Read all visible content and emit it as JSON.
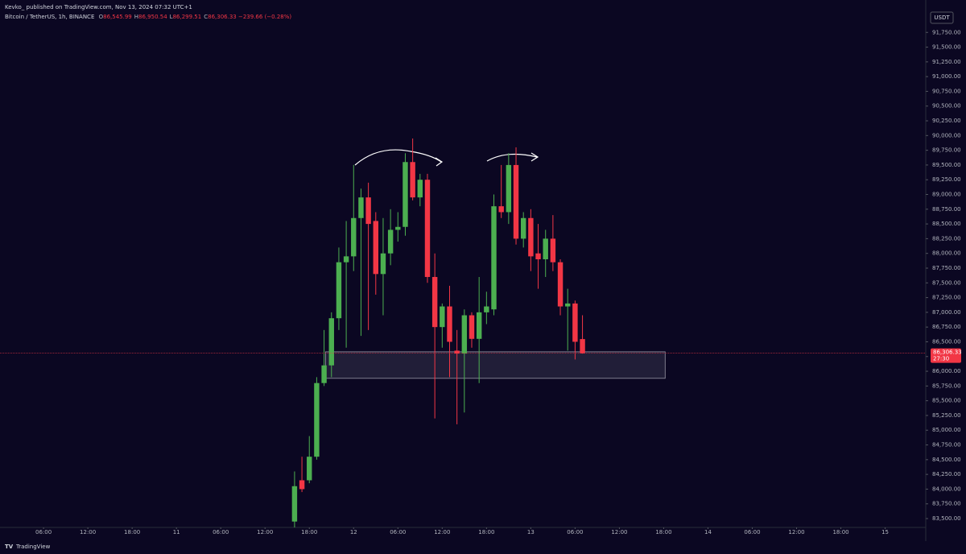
{
  "chart_data": {
    "type": "candlestick",
    "publisher": "Kevko_ published on TradingView.com, Nov 13, 2024 07:32 UTC+1",
    "symbol": "Bitcoin / TetherUS, 1h, BINANCE",
    "ohlc": [
      {
        "key": "O",
        "value": "86,545.99"
      },
      {
        "key": "H",
        "value": "86,950.54"
      },
      {
        "key": "L",
        "value": "86,299.51"
      },
      {
        "key": "C",
        "value": "86,306.33"
      }
    ],
    "change": "−239.66 (−0.28%)",
    "currency": "USDT",
    "last_price_label": "86,306.33",
    "countdown": "27:30",
    "footer": "TradingView",
    "up_color": "#4caf50",
    "down_color": "#f23645",
    "x": [
      16,
      17,
      18,
      19,
      20,
      21,
      22,
      23,
      24,
      25,
      26,
      27,
      28,
      29,
      30,
      31,
      32,
      33,
      34,
      35,
      36,
      37,
      38,
      39,
      40,
      41,
      42,
      43,
      44,
      45,
      46,
      47,
      48,
      49,
      50,
      51,
      52,
      53,
      54,
      55
    ],
    "open": [
      83450,
      84150,
      84150,
      84550,
      85800,
      86100,
      86900,
      87850,
      87950,
      88600,
      88950,
      88550,
      87650,
      88000,
      88400,
      88450,
      89550,
      88950,
      89250,
      87600,
      86750,
      87100,
      86350,
      86300,
      86950,
      86550,
      87000,
      87050,
      88800,
      88700,
      89500,
      88250,
      88600,
      88000,
      87900,
      88250,
      87850,
      87100,
      87150,
      86545.99
    ],
    "high": [
      84300,
      84550,
      84900,
      85900,
      86700,
      87000,
      88100,
      88550,
      89500,
      89100,
      89200,
      88700,
      88600,
      88750,
      88700,
      89700,
      89950,
      89350,
      89350,
      88000,
      87150,
      87450,
      86700,
      87050,
      87000,
      87600,
      87350,
      89000,
      89500,
      89700,
      89800,
      88700,
      88750,
      88500,
      88400,
      88650,
      87900,
      87400,
      87200,
      86950.54
    ],
    "low": [
      83350,
      83950,
      84100,
      84500,
      85750,
      85900,
      86700,
      86400,
      87700,
      86600,
      86700,
      87300,
      86950,
      87800,
      88200,
      88300,
      88900,
      88800,
      87500,
      85200,
      86400,
      85900,
      85100,
      85300,
      86400,
      85800,
      86800,
      86950,
      88600,
      88500,
      88150,
      88100,
      87700,
      87400,
      87600,
      87700,
      86950,
      86350,
      86200,
      86299.51
    ],
    "close": [
      84050,
      84000,
      84550,
      85800,
      86100,
      86900,
      87850,
      87950,
      88600,
      88950,
      88500,
      87650,
      88000,
      88400,
      88450,
      89550,
      88950,
      89250,
      87600,
      86750,
      87100,
      86500,
      86300,
      86950,
      86550,
      87000,
      87100,
      88800,
      88700,
      89500,
      88250,
      88600,
      87950,
      87900,
      88250,
      87850,
      87100,
      87150,
      86500,
      86306.33
    ],
    "zone": {
      "x": [
        20.2,
        66.2
      ],
      "y": [
        86330,
        85880
      ]
    },
    "xlim": [
      -23.9,
      101.5
    ],
    "ylim": [
      83350,
      92300
    ],
    "xticks": [
      {
        "value": -18,
        "label": "06:00"
      },
      {
        "value": -12,
        "label": "12:00"
      },
      {
        "value": -6,
        "label": "18:00"
      },
      {
        "value": 0,
        "label": "11"
      },
      {
        "value": 6,
        "label": "06:00"
      },
      {
        "value": 12,
        "label": "12:00"
      },
      {
        "value": 18,
        "label": "18:00"
      },
      {
        "value": 24,
        "label": "12"
      },
      {
        "value": 30,
        "label": "06:00"
      },
      {
        "value": 36,
        "label": "12:00"
      },
      {
        "value": 42,
        "label": "18:00"
      },
      {
        "value": 48,
        "label": "13"
      },
      {
        "value": 54,
        "label": "06:00"
      },
      {
        "value": 60,
        "label": "12:00"
      },
      {
        "value": 66,
        "label": "18:00"
      },
      {
        "value": 72,
        "label": "14"
      },
      {
        "value": 78,
        "label": "06:00"
      },
      {
        "value": 84,
        "label": "12:00"
      },
      {
        "value": 90,
        "label": "18:00"
      },
      {
        "value": 96,
        "label": "15"
      }
    ],
    "yticks": [
      {
        "value": 83500,
        "label": "83,500.00"
      },
      {
        "value": 83750,
        "label": "83,750.00"
      },
      {
        "value": 84000,
        "label": "84,000.00"
      },
      {
        "value": 84250,
        "label": "84,250.00"
      },
      {
        "value": 84500,
        "label": "84,500.00"
      },
      {
        "value": 84750,
        "label": "84,750.00"
      },
      {
        "value": 85000,
        "label": "85,000.00"
      },
      {
        "value": 85250,
        "label": "85,250.00"
      },
      {
        "value": 85500,
        "label": "85,500.00"
      },
      {
        "value": 85750,
        "label": "85,750.00"
      },
      {
        "value": 86000,
        "label": "86,000.00"
      },
      {
        "value": 86250,
        "label": "86,250.00"
      },
      {
        "value": 86500,
        "label": "86,500.00"
      },
      {
        "value": 86750,
        "label": "86,750.00"
      },
      {
        "value": 87000,
        "label": "87,000.00"
      },
      {
        "value": 87250,
        "label": "87,250.00"
      },
      {
        "value": 87500,
        "label": "87,500.00"
      },
      {
        "value": 87750,
        "label": "87,750.00"
      },
      {
        "value": 88000,
        "label": "88,000.00"
      },
      {
        "value": 88250,
        "label": "88,250.00"
      },
      {
        "value": 88500,
        "label": "88,500.00"
      },
      {
        "value": 88750,
        "label": "88,750.00"
      },
      {
        "value": 89000,
        "label": "89,000.00"
      },
      {
        "value": 89250,
        "label": "89,250.00"
      },
      {
        "value": 89500,
        "label": "89,500.00"
      },
      {
        "value": 89750,
        "label": "89,750.00"
      },
      {
        "value": 90000,
        "label": "90,000.00"
      },
      {
        "value": 90250,
        "label": "90,250.00"
      },
      {
        "value": 90500,
        "label": "90,500.00"
      },
      {
        "value": 90750,
        "label": "90,750.00"
      },
      {
        "value": 91000,
        "label": "91,000.00"
      },
      {
        "value": 91250,
        "label": "91,250.00"
      },
      {
        "value": 91500,
        "label": "91,500.00"
      },
      {
        "value": 91750,
        "label": "91,750.00"
      }
    ]
  }
}
